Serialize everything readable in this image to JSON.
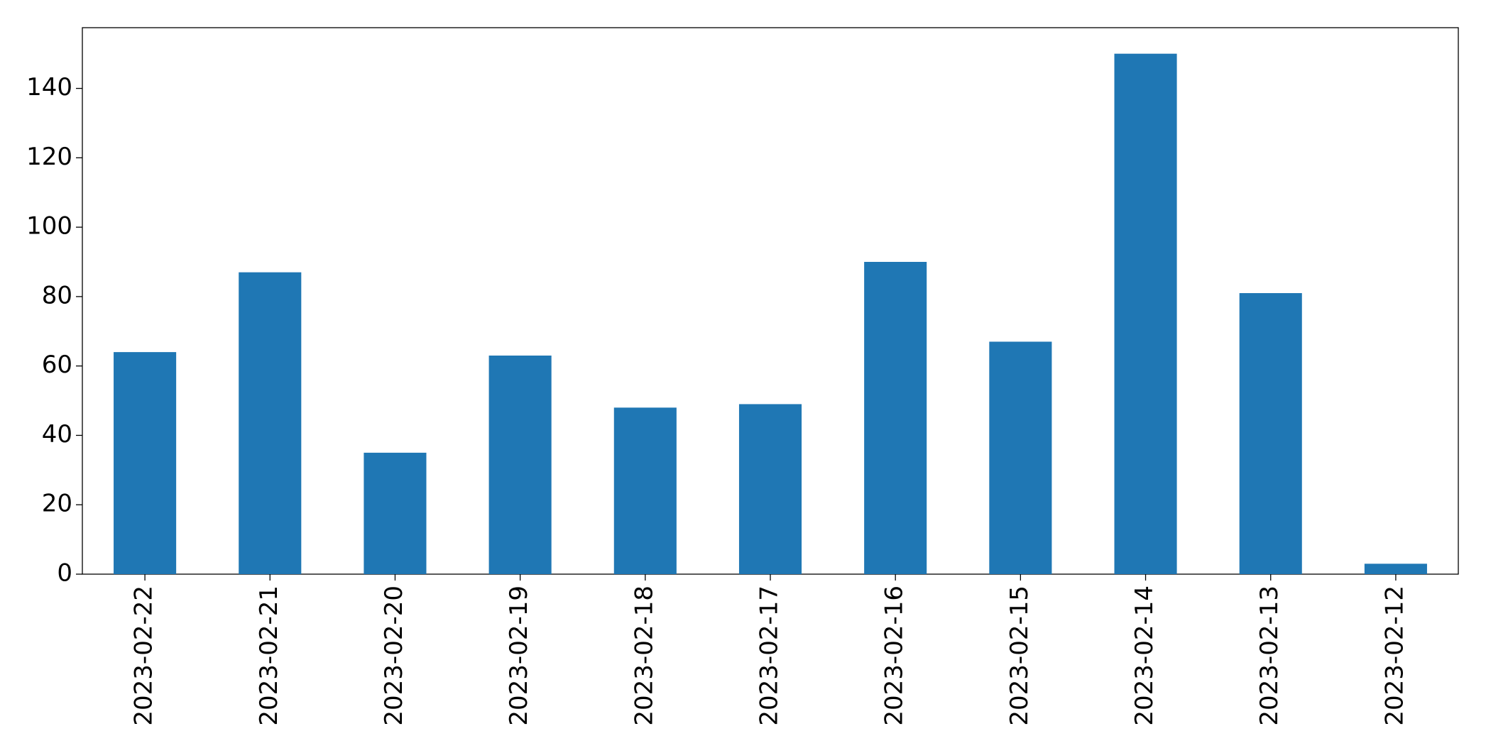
{
  "chart_data": {
    "type": "bar",
    "categories": [
      "2023-02-22",
      "2023-02-21",
      "2023-02-20",
      "2023-02-19",
      "2023-02-18",
      "2023-02-17",
      "2023-02-16",
      "2023-02-15",
      "2023-02-14",
      "2023-02-13",
      "2023-02-12"
    ],
    "values": [
      64,
      87,
      35,
      63,
      48,
      49,
      90,
      67,
      150,
      81,
      3
    ],
    "color": "#1f77b4",
    "ylim": [
      0,
      157.5
    ],
    "yticks": [
      0,
      20,
      40,
      60,
      80,
      100,
      120,
      140
    ],
    "grid": false
  }
}
